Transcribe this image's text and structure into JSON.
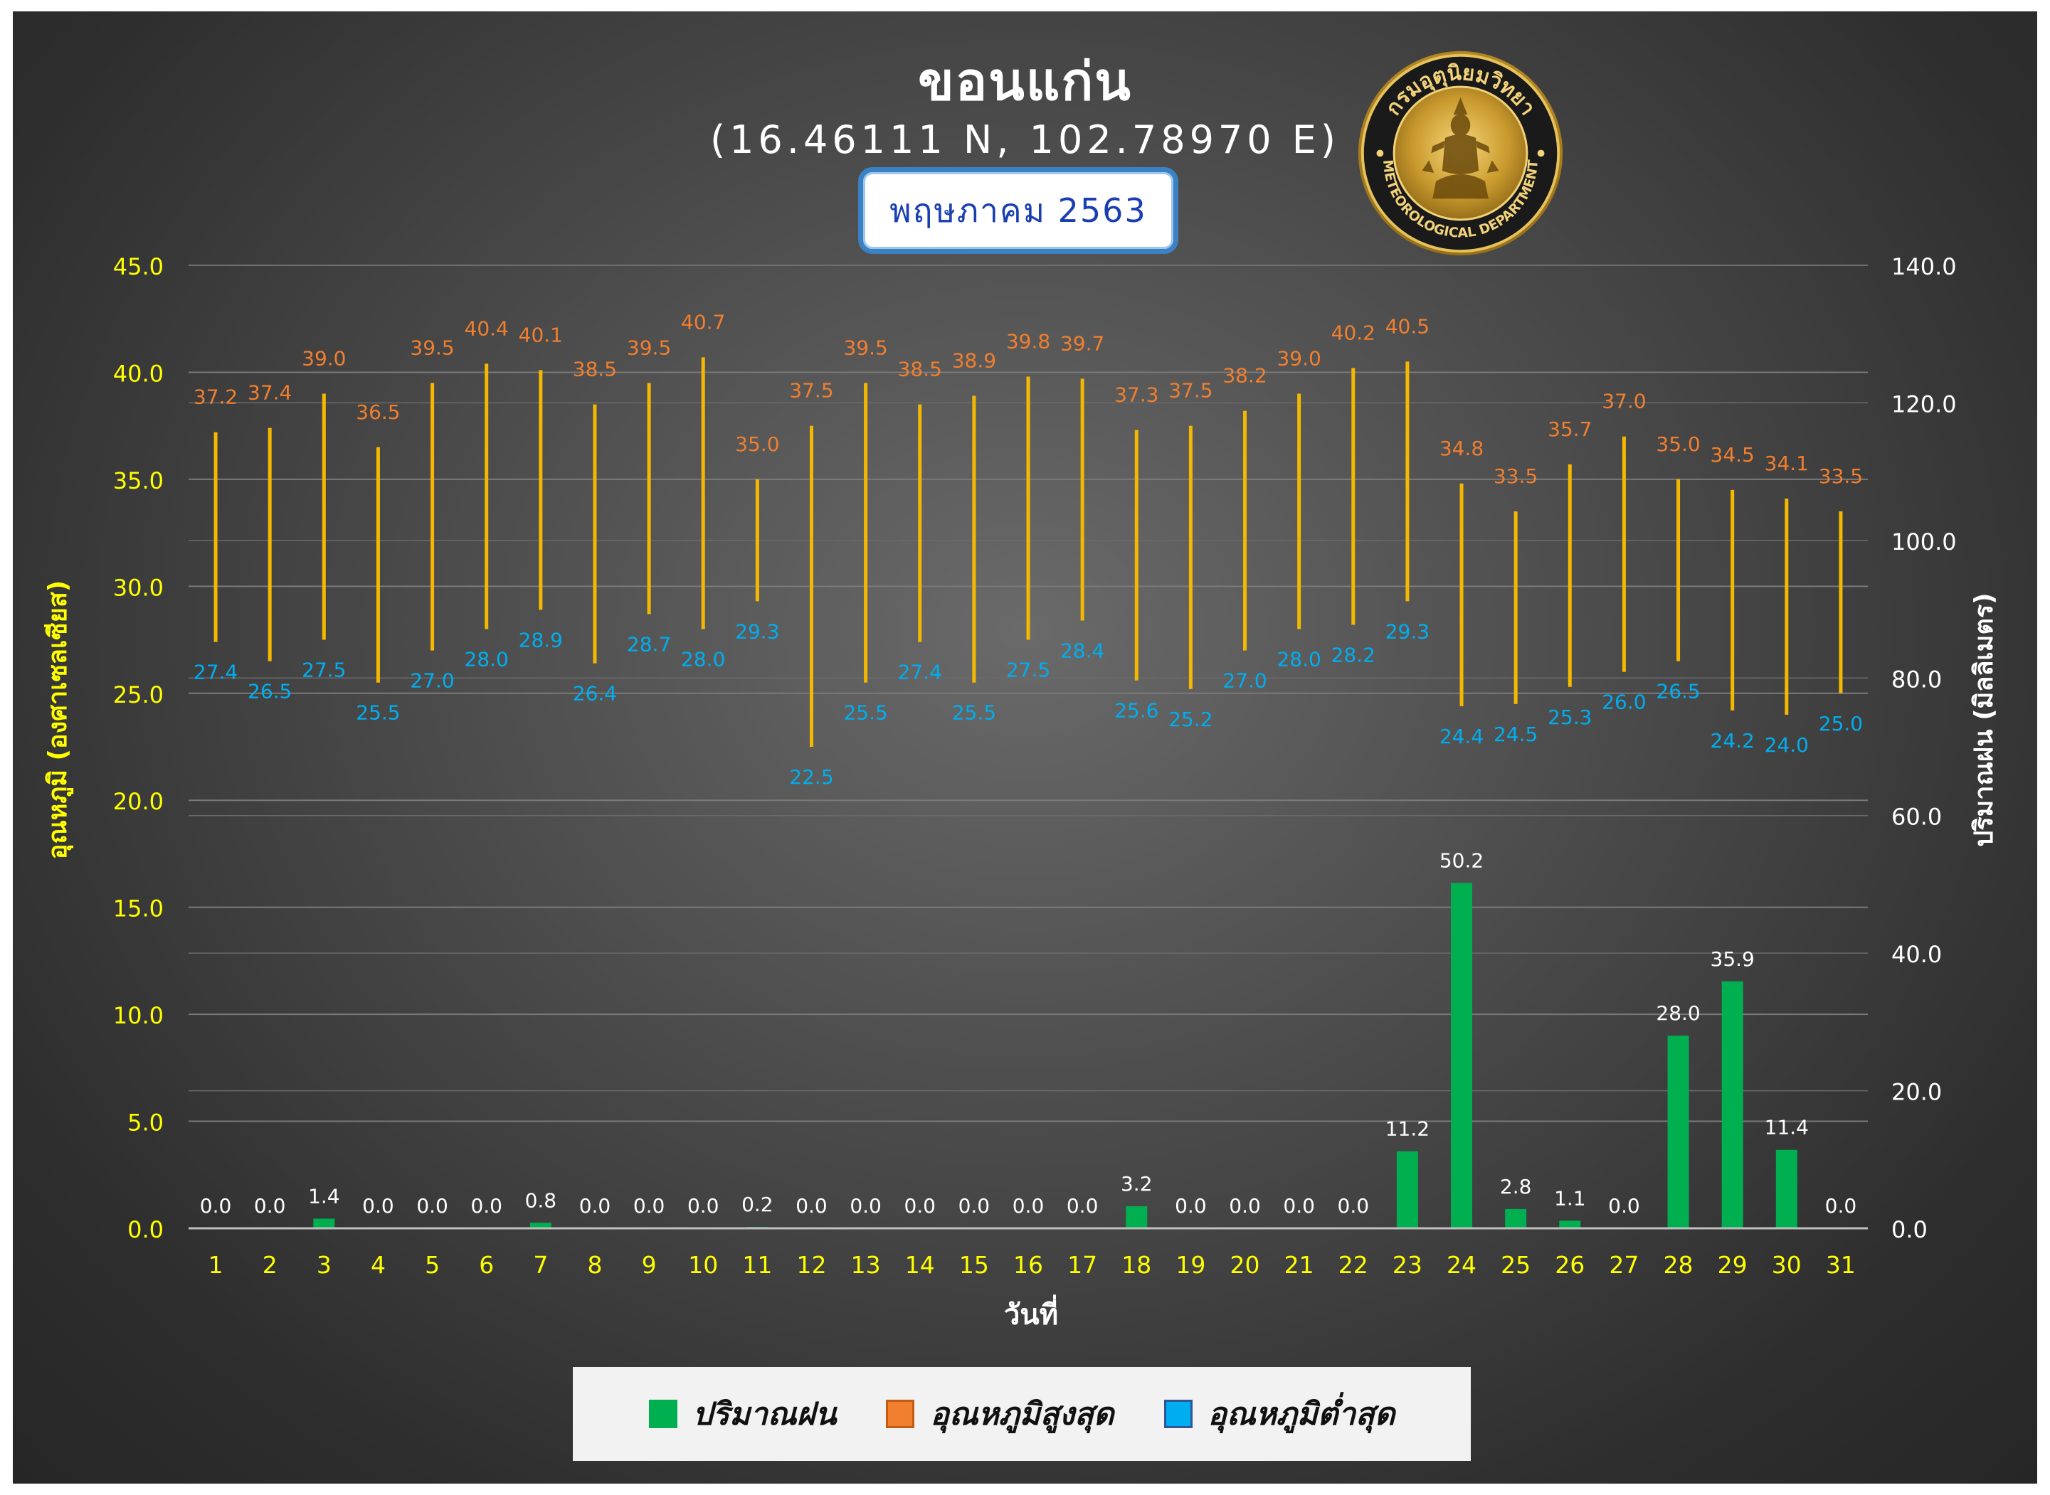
{
  "header": {
    "city": "ขอนแก่น",
    "coordinates": "(16.46111 N, 102.78970 E)",
    "month": "พฤษภาคม 2563"
  },
  "logo": {
    "text_top": "กรมอุตุนิยมวิทยา",
    "text_bottom": "METEOROLOGICAL DEPARTMENT"
  },
  "legend": {
    "items": [
      {
        "label": "ปริมาณฝน",
        "color": "#00b050"
      },
      {
        "label": "อุณหภูมิสูงสุด",
        "color": "#f07f2f"
      },
      {
        "label": "อุณหภูมิต่ำสุด",
        "color": "#00aeef"
      }
    ]
  },
  "chart_data": {
    "type": "bar",
    "title": "ขอนแก่น",
    "xlabel": "วันที่",
    "ylabel_left": "อุณหภูมิ (องศาเซลเซียส)",
    "ylabel_right": "ปริมาณฝน (มิลลิเมตร)",
    "ylim_left": [
      0,
      45
    ],
    "ylim_right": [
      0,
      140
    ],
    "yticks_left": [
      "0.0",
      "5.0",
      "10.0",
      "15.0",
      "20.0",
      "25.0",
      "30.0",
      "35.0",
      "40.0",
      "45.0"
    ],
    "yticks_right": [
      "0.0",
      "20.0",
      "40.0",
      "60.0",
      "80.0",
      "100.0",
      "120.0",
      "140.0"
    ],
    "categories": [
      "1",
      "2",
      "3",
      "4",
      "5",
      "6",
      "7",
      "8",
      "9",
      "10",
      "11",
      "12",
      "13",
      "14",
      "15",
      "16",
      "17",
      "18",
      "19",
      "20",
      "21",
      "22",
      "23",
      "24",
      "25",
      "26",
      "27",
      "28",
      "29",
      "30",
      "31"
    ],
    "grid": true,
    "legend_position": "bottom",
    "series": [
      {
        "name": "ปริมาณฝน",
        "type": "bar",
        "axis": "right",
        "color": "#00b050",
        "values": [
          0.0,
          0.0,
          1.4,
          0.0,
          0.0,
          0.0,
          0.8,
          0.0,
          0.0,
          0.0,
          0.2,
          0.0,
          0.0,
          0.0,
          0.0,
          0.0,
          0.0,
          3.2,
          0.0,
          0.0,
          0.0,
          0.0,
          11.2,
          50.2,
          2.8,
          1.1,
          0.0,
          28.0,
          35.9,
          11.4,
          0.0
        ]
      },
      {
        "name": "อุณหภูมิสูงสุด",
        "type": "range-high",
        "axis": "left",
        "color": "#f07f2f",
        "values": [
          37.2,
          37.4,
          39.0,
          36.5,
          39.5,
          40.4,
          40.1,
          38.5,
          39.5,
          40.7,
          35.0,
          37.5,
          39.5,
          38.5,
          38.9,
          39.8,
          39.7,
          37.3,
          37.5,
          38.2,
          39.0,
          40.2,
          40.5,
          34.8,
          33.5,
          35.7,
          37.0,
          35.0,
          34.5,
          34.1,
          33.5
        ]
      },
      {
        "name": "อุณหภูมิต่ำสุด",
        "type": "range-low",
        "axis": "left",
        "color": "#00aeef",
        "values": [
          27.4,
          26.5,
          27.5,
          25.5,
          27.0,
          28.0,
          28.9,
          26.4,
          28.7,
          28.0,
          29.3,
          22.5,
          25.5,
          27.4,
          25.5,
          27.5,
          28.4,
          25.6,
          25.2,
          27.0,
          28.0,
          28.2,
          29.3,
          24.4,
          24.5,
          25.3,
          26.0,
          26.5,
          24.2,
          24.0,
          25.0
        ]
      }
    ],
    "range_line_color": "#f5b800"
  }
}
